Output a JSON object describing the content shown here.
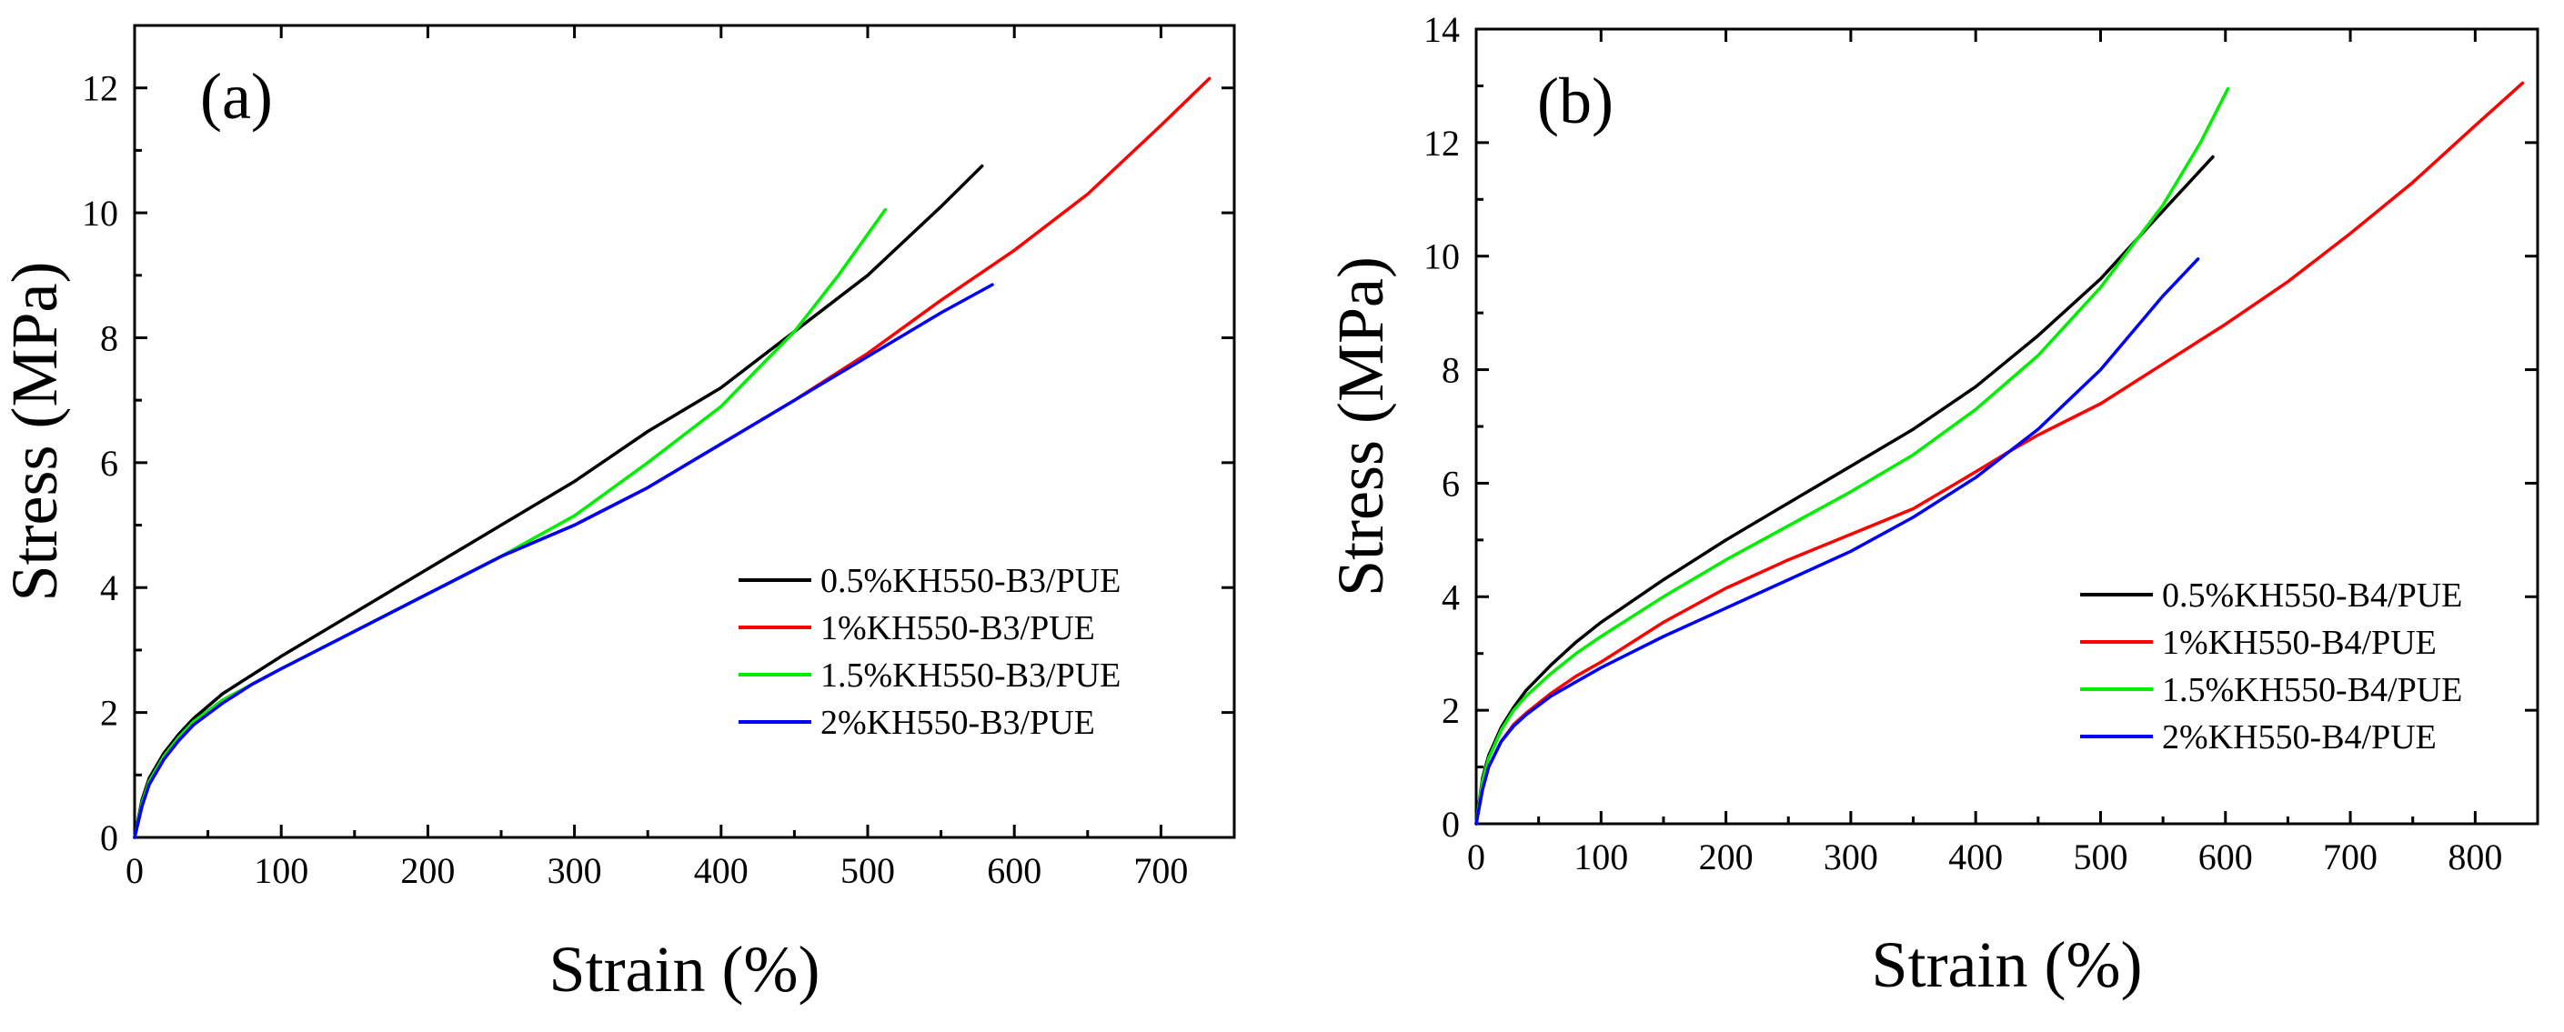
{
  "chart_data": [
    {
      "type": "line",
      "panel_label": "(a)",
      "xlabel": "Strain (%)",
      "ylabel": "Stress (MPa)",
      "xlim": [
        0,
        750
      ],
      "ylim": [
        0,
        13
      ],
      "xticks": [
        0,
        100,
        200,
        300,
        400,
        500,
        600,
        700
      ],
      "yticks": [
        0,
        2,
        4,
        6,
        8,
        10,
        12
      ],
      "legend_position": "center-right",
      "series": [
        {
          "name": "0.5%KH550-B3/PUE",
          "color": "#000000",
          "x": [
            0,
            5,
            10,
            20,
            30,
            40,
            60,
            80,
            100,
            150,
            200,
            250,
            300,
            350,
            400,
            450,
            500,
            550,
            578
          ],
          "y": [
            0,
            0.6,
            0.95,
            1.35,
            1.65,
            1.9,
            2.3,
            2.6,
            2.9,
            3.6,
            4.3,
            5.0,
            5.7,
            6.5,
            7.2,
            8.1,
            9.0,
            10.1,
            10.75
          ]
        },
        {
          "name": "1%KH550-B3/PUE",
          "color": "#ff0000",
          "x": [
            0,
            5,
            10,
            20,
            30,
            40,
            60,
            80,
            100,
            150,
            200,
            250,
            300,
            350,
            400,
            450,
            500,
            550,
            600,
            650,
            700,
            733
          ],
          "y": [
            0,
            0.5,
            0.85,
            1.25,
            1.55,
            1.8,
            2.15,
            2.45,
            2.7,
            3.3,
            3.9,
            4.5,
            5.0,
            5.6,
            6.3,
            7.0,
            7.75,
            8.6,
            9.4,
            10.3,
            11.4,
            12.15
          ]
        },
        {
          "name": "1.5%KH550-B3/PUE",
          "color": "#00ee00",
          "x": [
            0,
            5,
            10,
            20,
            30,
            40,
            60,
            80,
            100,
            150,
            200,
            250,
            300,
            350,
            400,
            450,
            480,
            512
          ],
          "y": [
            0,
            0.55,
            0.9,
            1.3,
            1.6,
            1.85,
            2.2,
            2.45,
            2.7,
            3.3,
            3.9,
            4.5,
            5.15,
            6.0,
            6.9,
            8.1,
            9.0,
            10.05
          ]
        },
        {
          "name": "2%KH550-B3/PUE",
          "color": "#0000ff",
          "x": [
            0,
            5,
            10,
            20,
            30,
            40,
            60,
            80,
            100,
            150,
            200,
            250,
            300,
            350,
            400,
            450,
            500,
            550,
            585
          ],
          "y": [
            0,
            0.5,
            0.85,
            1.25,
            1.55,
            1.8,
            2.15,
            2.45,
            2.7,
            3.3,
            3.9,
            4.5,
            5.0,
            5.6,
            6.3,
            7.0,
            7.7,
            8.4,
            8.85
          ]
        }
      ]
    },
    {
      "type": "line",
      "panel_label": "(b)",
      "xlabel": "Strain (%)",
      "ylabel": "Stress (MPa)",
      "xlim": [
        0,
        850
      ],
      "ylim": [
        0,
        14
      ],
      "xticks": [
        0,
        100,
        200,
        300,
        400,
        500,
        600,
        700,
        800
      ],
      "yticks": [
        0,
        2,
        4,
        6,
        8,
        10,
        12,
        14
      ],
      "legend_position": "center-right",
      "series": [
        {
          "name": "0.5%KH550-B4/PUE",
          "color": "#000000",
          "x": [
            0,
            5,
            10,
            20,
            30,
            40,
            60,
            80,
            100,
            150,
            200,
            250,
            300,
            350,
            400,
            450,
            500,
            550,
            590
          ],
          "y": [
            0,
            0.8,
            1.2,
            1.7,
            2.05,
            2.35,
            2.8,
            3.2,
            3.55,
            4.3,
            5.0,
            5.65,
            6.3,
            6.95,
            7.7,
            8.6,
            9.6,
            10.8,
            11.75
          ]
        },
        {
          "name": "1%KH550-B4/PUE",
          "color": "#ff0000",
          "x": [
            0,
            5,
            10,
            20,
            30,
            40,
            60,
            80,
            100,
            150,
            200,
            250,
            300,
            350,
            400,
            430,
            450,
            500,
            550,
            600,
            650,
            700,
            750,
            800,
            838
          ],
          "y": [
            0,
            0.6,
            1.0,
            1.45,
            1.75,
            1.95,
            2.3,
            2.6,
            2.85,
            3.55,
            4.15,
            4.65,
            5.1,
            5.55,
            6.2,
            6.6,
            6.85,
            7.4,
            8.1,
            8.8,
            9.55,
            10.4,
            11.3,
            12.3,
            13.05
          ]
        },
        {
          "name": "1.5%KH550-B4/PUE",
          "color": "#00ee00",
          "x": [
            0,
            5,
            10,
            20,
            30,
            40,
            60,
            80,
            100,
            150,
            200,
            250,
            300,
            350,
            400,
            450,
            500,
            550,
            580,
            602
          ],
          "y": [
            0,
            0.75,
            1.15,
            1.65,
            2.0,
            2.25,
            2.65,
            3.0,
            3.3,
            4.0,
            4.65,
            5.25,
            5.85,
            6.5,
            7.3,
            8.25,
            9.45,
            10.9,
            12.0,
            12.95
          ]
        },
        {
          "name": "2%KH550-B4/PUE",
          "color": "#0000ff",
          "x": [
            0,
            5,
            10,
            20,
            30,
            40,
            60,
            80,
            100,
            150,
            200,
            250,
            300,
            350,
            400,
            450,
            500,
            550,
            578
          ],
          "y": [
            0,
            0.6,
            1.0,
            1.45,
            1.72,
            1.92,
            2.25,
            2.5,
            2.75,
            3.3,
            3.8,
            4.3,
            4.8,
            5.4,
            6.1,
            6.95,
            8.0,
            9.3,
            9.95
          ]
        }
      ]
    }
  ]
}
